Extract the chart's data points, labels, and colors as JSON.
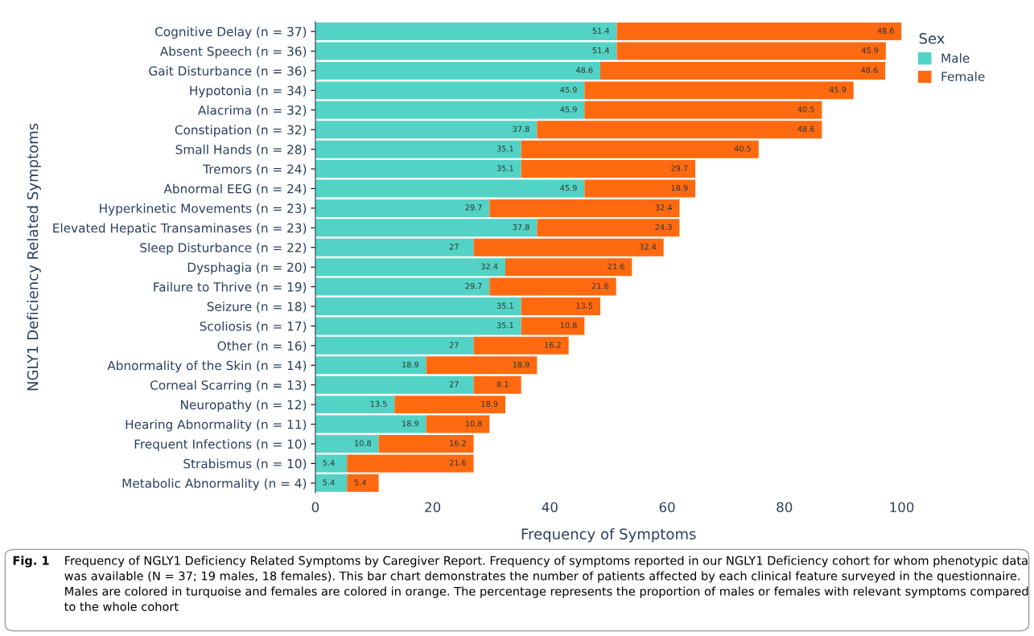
{
  "chart_data": {
    "type": "bar",
    "orientation": "horizontal",
    "stacked": true,
    "categories": [
      "Cognitive Delay (n = 37)",
      "Absent Speech (n = 36)",
      "Gait Disturbance (n = 36)",
      "Hypotonia (n = 34)",
      "Alacrima (n = 32)",
      "Constipation (n = 32)",
      "Small Hands (n = 28)",
      "Tremors (n = 24)",
      "Abnormal EEG (n = 24)",
      "Hyperkinetic Movements (n = 23)",
      "Elevated Hepatic Transaminases (n = 23)",
      "Sleep Disturbance (n = 22)",
      "Dysphagia (n = 20)",
      "Failure to Thrive (n = 19)",
      "Seizure (n = 18)",
      "Scoliosis (n = 17)",
      "Other (n = 16)",
      "Abnormality of the Skin (n = 14)",
      "Corneal Scarring (n = 13)",
      "Neuropathy (n = 12)",
      "Hearing Abnormality (n = 11)",
      "Frequent Infections (n = 10)",
      "Strabismus (n = 10)",
      "Metabolic Abnormality (n = 4)"
    ],
    "series": [
      {
        "name": "Male",
        "color": "#52d3c5",
        "values": [
          51.4,
          51.4,
          48.6,
          45.9,
          45.9,
          37.8,
          35.1,
          35.1,
          45.9,
          29.7,
          37.8,
          27,
          32.4,
          29.7,
          35.1,
          35.1,
          27,
          18.9,
          27,
          13.5,
          18.9,
          10.8,
          5.4,
          5.4
        ]
      },
      {
        "name": "Female",
        "color": "#ff6a10",
        "values": [
          48.6,
          45.9,
          48.6,
          45.9,
          40.5,
          48.6,
          40.5,
          29.7,
          18.9,
          32.4,
          24.3,
          32.4,
          21.6,
          21.6,
          13.5,
          10.8,
          16.2,
          18.9,
          8.1,
          18.9,
          10.8,
          16.2,
          21.6,
          5.4
        ]
      }
    ],
    "data_labels": true,
    "xlim": [
      0,
      100
    ],
    "xticks": [
      0,
      20,
      40,
      60,
      80,
      100
    ],
    "xlabel": "Frequency of Symptoms",
    "ylabel": "NGLY1 Deficiency Related Symptoms",
    "legend_title": "Sex",
    "legend": "top right",
    "grid": false,
    "annotations": [
      "Fig. 1",
      "Frequency of NGLY1 Deficiency Related Symptoms by Caregiver Report. Frequency of symptoms reported in our NGLY1 Deficiency cohort for whom phenotypic data was available (N = 37; 19 males, 18 females). This bar chart demonstrates the number of patients affected by each clinical feature surveyed in the questionnaire. Males are colored in turquoise and females are colored in orange. The percentage represents the proportion of males or females with relevant symptoms compared to the whole cohort"
    ]
  }
}
